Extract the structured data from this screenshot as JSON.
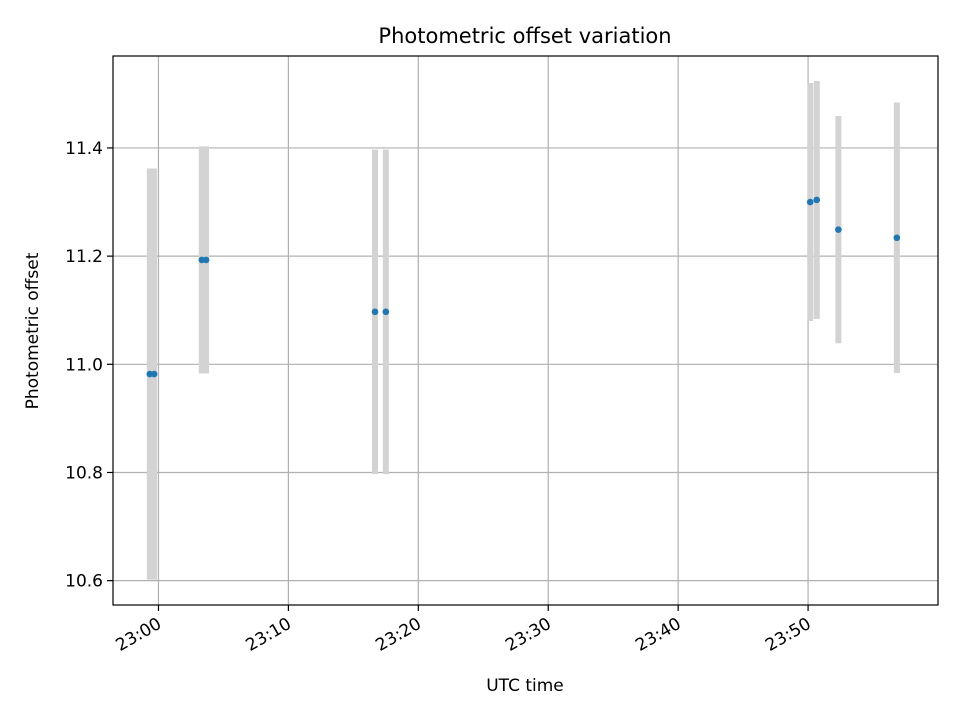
{
  "chart_data": {
    "type": "scatter",
    "title": "Photometric offset variation",
    "xlabel": "UTC time",
    "ylabel": "Photometric offset",
    "x_tick_labels": [
      "23:00",
      "23:10",
      "23:20",
      "23:30",
      "23:40",
      "23:50"
    ],
    "x_ticks_minutes": [
      0,
      10,
      20,
      30,
      40,
      50
    ],
    "xlim_minutes": [
      -3.5,
      60
    ],
    "y_tick_labels": [
      "10.6",
      "10.8",
      "11.0",
      "11.2",
      "11.4"
    ],
    "y_ticks": [
      10.6,
      10.8,
      11.0,
      11.2,
      11.4
    ],
    "ylim": [
      10.555,
      11.57
    ],
    "grid": true,
    "points_color": "#1f77b4",
    "errorbar_color": "#d3d3d3",
    "series": [
      {
        "points": [
          {
            "t": "22:59:20",
            "y": 10.982,
            "err": 0.38
          },
          {
            "t": "22:59:40",
            "y": 10.982,
            "err": 0.38
          },
          {
            "t": "23:03:20",
            "y": 11.193,
            "err": 0.21
          },
          {
            "t": "23:03:40",
            "y": 11.193,
            "err": 0.21
          },
          {
            "t": "23:16:40",
            "y": 11.097,
            "err": 0.3
          },
          {
            "t": "23:17:30",
            "y": 11.097,
            "err": 0.3
          },
          {
            "t": "23:50:10",
            "y": 11.3,
            "err": 0.22
          },
          {
            "t": "23:50:40",
            "y": 11.304,
            "err": 0.22
          },
          {
            "t": "23:52:20",
            "y": 11.249,
            "err": 0.21
          },
          {
            "t": "23:56:50",
            "y": 11.234,
            "err": 0.25
          }
        ]
      }
    ]
  }
}
